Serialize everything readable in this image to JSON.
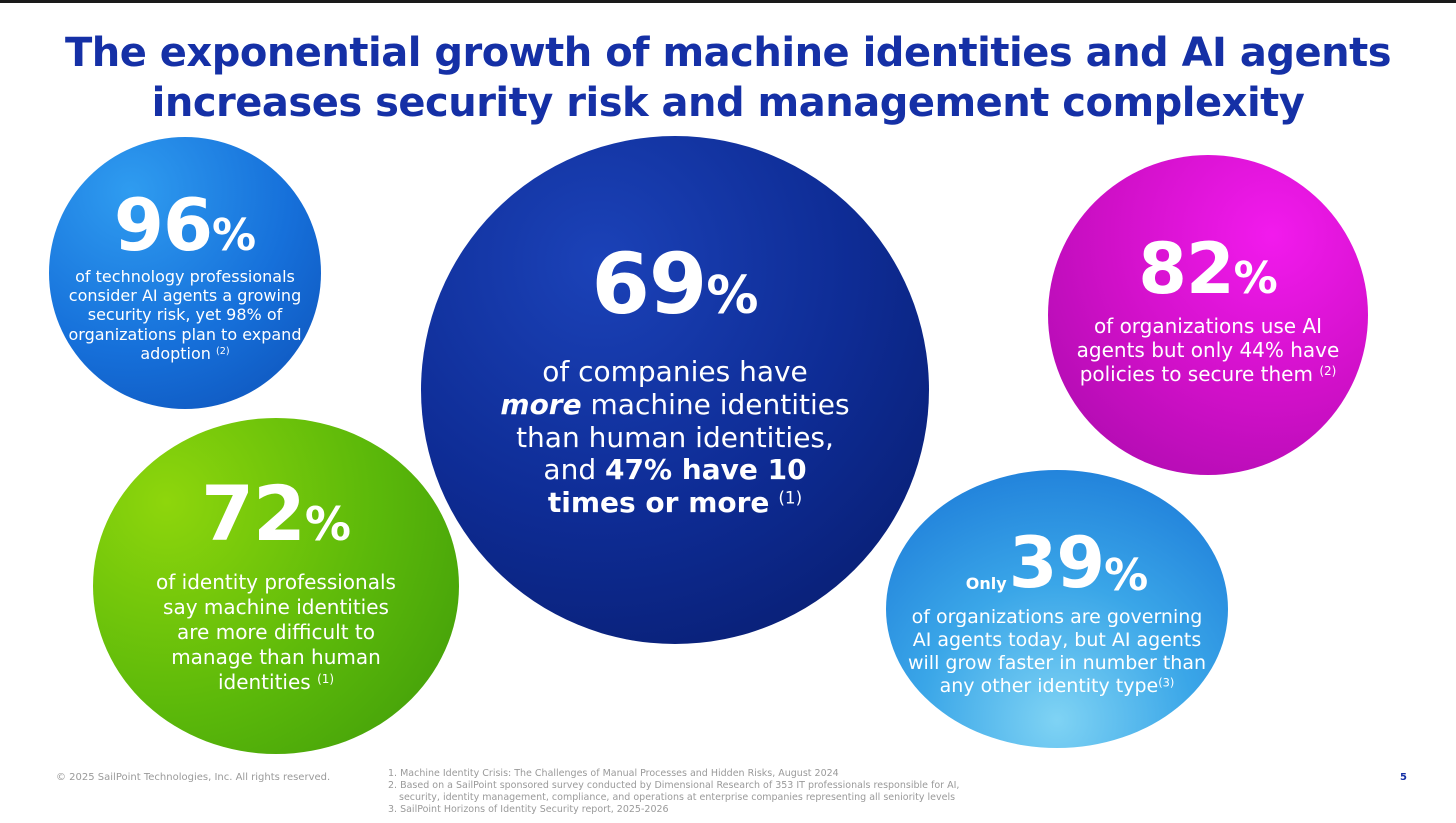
{
  "slide": {
    "title_line1": "The exponential growth of machine identities and AI agents",
    "title_line2": "increases security risk and management complexity",
    "page_number": "5"
  },
  "colors": {
    "title": "#1530a6",
    "bubble_96": "#1670da",
    "bubble_69": "#0e2c95",
    "bubble_82": "#d010c8",
    "bubble_72": "#5bb80a",
    "bubble_39": "#3aa6e8"
  },
  "stats": {
    "s96": {
      "number": "96",
      "percent": "%",
      "text": "of technology professionals consider AI agents a growing security risk, yet 98% of organizations plan to expand adoption",
      "ref": "(2)"
    },
    "s69": {
      "number": "69",
      "percent": "%",
      "text_a": "of companies have",
      "emph": "more",
      "text_b": "machine identities than human identities, and",
      "bold": "47% have 10 times or more",
      "ref": "(1)"
    },
    "s82": {
      "number": "82",
      "percent": "%",
      "text": "of organizations use AI agents but only 44% have policies to secure them",
      "ref": "(2)"
    },
    "s72": {
      "number": "72",
      "percent": "%",
      "text": "of identity professionals say machine identities are more difficult to manage than human identities",
      "ref": "(1)"
    },
    "s39": {
      "prefix": "Only",
      "number": "39",
      "percent": "%",
      "text": "of organizations are governing AI agents today, but AI agents will grow faster in number than any other identity type",
      "ref": "(3)"
    }
  },
  "footer": {
    "copyright": "© 2025 SailPoint Technologies, Inc. All rights reserved.",
    "fn1": "1. Machine Identity Crisis: The Challenges of Manual Processes and Hidden Risks, August 2024",
    "fn2a": "2. Based on a SailPoint sponsored survey conducted by Dimensional Research of 353 IT professionals responsible for AI,",
    "fn2b": "security, identity management, compliance, and operations at enterprise companies representing all seniority levels",
    "fn3": "3. SailPoint Horizons of Identity Security report, 2025-2026"
  }
}
